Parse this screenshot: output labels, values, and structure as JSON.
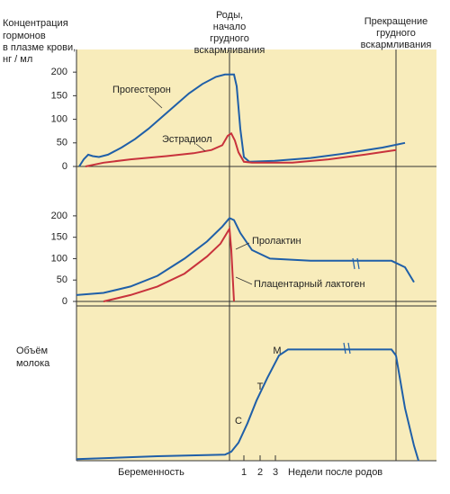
{
  "chart_data": [
    {
      "type": "line",
      "y_label": [
        "Концентрация",
        "гормонов",
        "в плазме крови,",
        "нг / мл"
      ],
      "xlim": [
        0,
        400
      ],
      "ylim": [
        0,
        248
      ],
      "yticks": [
        0,
        50,
        100,
        150,
        200
      ],
      "series": [
        {
          "name": "Прогестерон",
          "color": "#1f5fa8",
          "x": [
            3,
            8,
            13,
            18,
            25,
            35,
            50,
            65,
            80,
            95,
            110,
            125,
            140,
            155,
            165,
            175,
            178,
            182,
            186,
            192,
            220,
            260,
            300,
            340,
            365
          ],
          "values": [
            0,
            15,
            25,
            22,
            20,
            25,
            40,
            58,
            80,
            105,
            130,
            155,
            175,
            190,
            195,
            195,
            170,
            80,
            20,
            10,
            12,
            18,
            28,
            40,
            50
          ]
        },
        {
          "name": "Эстрадиол",
          "color": "#c8323c",
          "x": [
            10,
            30,
            60,
            100,
            130,
            150,
            162,
            168,
            172,
            176,
            180,
            186,
            195,
            240,
            280,
            320,
            355
          ],
          "values": [
            0,
            8,
            15,
            22,
            28,
            35,
            45,
            65,
            70,
            55,
            30,
            10,
            8,
            8,
            15,
            25,
            35
          ]
        }
      ]
    },
    {
      "type": "line",
      "xlim": [
        0,
        400
      ],
      "ylim": [
        0,
        225
      ],
      "yticks": [
        0,
        50,
        100,
        150,
        200
      ],
      "series": [
        {
          "name": "Пролактин",
          "color": "#1f5fa8",
          "x": [
            0,
            30,
            60,
            90,
            120,
            145,
            162,
            170,
            175,
            182,
            195,
            215,
            260,
            305,
            350,
            365,
            375
          ],
          "values": [
            15,
            20,
            35,
            60,
            100,
            140,
            175,
            195,
            190,
            160,
            120,
            100,
            95,
            95,
            95,
            80,
            45
          ]
        },
        {
          "name": "Плацентарный лактоген",
          "color": "#c8323c",
          "x": [
            30,
            60,
            90,
            120,
            145,
            160,
            170,
            172,
            175
          ],
          "values": [
            0,
            15,
            35,
            65,
            105,
            135,
            170,
            120,
            0
          ]
        }
      ]
    },
    {
      "type": "line",
      "y_label": [
        "Объём",
        "молока"
      ],
      "xlim": [
        0,
        400
      ],
      "ylim": [
        0,
        100
      ],
      "x_label_left": "Беременность",
      "x_label_right": "Недели после родов",
      "xticks": [
        {
          "value": 186,
          "label": "1"
        },
        {
          "value": 204,
          "label": "2"
        },
        {
          "value": 221,
          "label": "3"
        }
      ],
      "annotations": [
        "С",
        "Т",
        "М"
      ],
      "series": [
        {
          "color": "#1f5fa8",
          "x": [
            0,
            90,
            165,
            172,
            180,
            190,
            200,
            212,
            225,
            235,
            300,
            350,
            355,
            365,
            375,
            380
          ],
          "values": [
            1,
            3,
            4,
            6,
            12,
            25,
            40,
            55,
            70,
            74,
            74,
            74,
            70,
            35,
            10,
            0
          ]
        }
      ]
    }
  ],
  "events": [
    {
      "x": 170,
      "label": [
        "Роды,",
        "начало",
        "грудного",
        "вскармливания"
      ]
    },
    {
      "x": 355,
      "label": [
        "Прекращение",
        "грудного",
        "вскармливания"
      ]
    }
  ]
}
